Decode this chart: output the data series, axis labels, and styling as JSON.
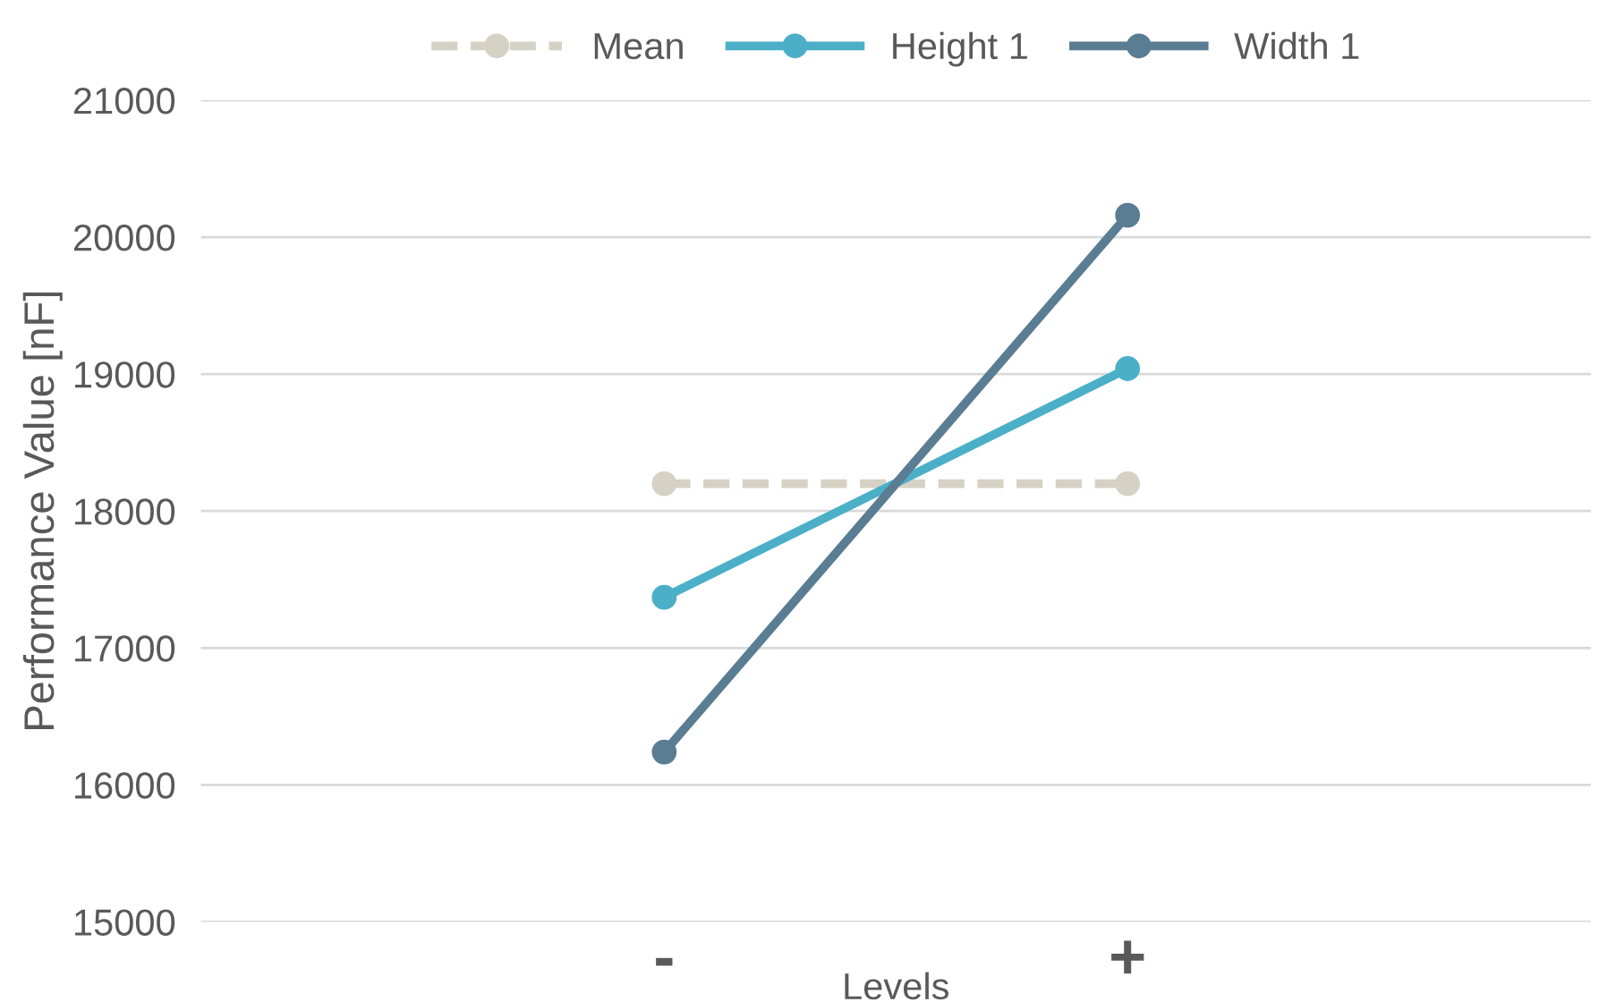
{
  "chart_data": {
    "type": "line",
    "categories": [
      "-",
      "+"
    ],
    "xlabel": "Levels",
    "ylabel": "Performance Value [nF]",
    "ylim": [
      15000,
      21000
    ],
    "yticks": [
      15000,
      16000,
      17000,
      18000,
      19000,
      20000,
      21000
    ],
    "grid": "y",
    "legend": "top",
    "marker": "circle",
    "series": [
      {
        "name": "Mean",
        "color": "#d5d2c5",
        "values": [
          18200,
          18200
        ],
        "line_style": "dashed"
      },
      {
        "name": "Height 1",
        "color": "#4bafc8",
        "values": [
          17370,
          19040
        ]
      },
      {
        "name": "Width 1",
        "color": "#5a7d93",
        "values": [
          16240,
          20160
        ]
      }
    ]
  }
}
